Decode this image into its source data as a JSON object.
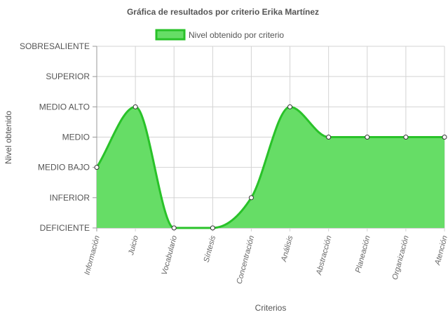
{
  "chart_data": {
    "type": "area",
    "title": "Gráfica de resultados por criterio Erika Martínez",
    "xlabel": "Criterios",
    "ylabel": "Nivel obtenido",
    "levels": [
      "DEFICIENTE",
      "INFERIOR",
      "MEDIO BAJO",
      "MEDIO",
      "MEDIO ALTO",
      "SUPERIOR",
      "SOBRESALIENTE"
    ],
    "categories": [
      "Información",
      "Juicio",
      "Vocabulario",
      "Síntesis",
      "Concentración",
      "Análisis",
      "Abstracción",
      "Planeación",
      "Organización",
      "Atención"
    ],
    "series": [
      {
        "name": "Nivel obtenido por criterio",
        "values": [
          2,
          4,
          0,
          0,
          1,
          4,
          3,
          3,
          3,
          3
        ],
        "color": "#29c229",
        "fill": "#66dd66"
      }
    ],
    "ylim": [
      0,
      6
    ],
    "grid": true,
    "legend_position": "top-center"
  }
}
